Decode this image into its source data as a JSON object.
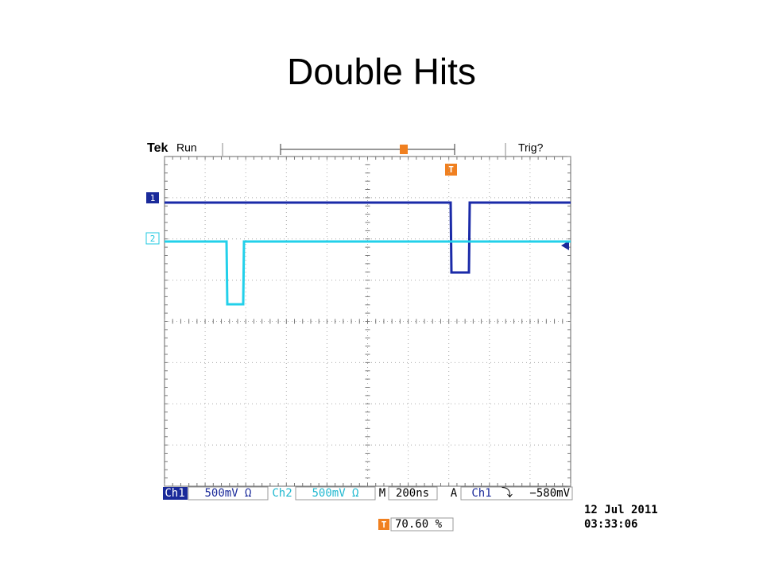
{
  "slide": {
    "title": "Double Hits"
  },
  "scope": {
    "brand": "Tek",
    "state": "Run",
    "trigger_state": "Trig?",
    "trigger_marker": "T",
    "channel_markers": [
      "1",
      "2"
    ],
    "readouts": {
      "ch1_label": "Ch1",
      "ch1_scale": "500mV Ω",
      "ch2_label": "Ch2",
      "ch2_scale": "500mV Ω",
      "time_label": "M",
      "time_scale": "200ns",
      "trigger_label": "A",
      "trigger_source": "Ch1",
      "trigger_slope": "⤵",
      "trigger_level": "−580mV"
    },
    "trigger_position_marker": "T",
    "trigger_position": "70.60 %",
    "date": "12 Jul  2011",
    "time": "03:33:06"
  }
}
